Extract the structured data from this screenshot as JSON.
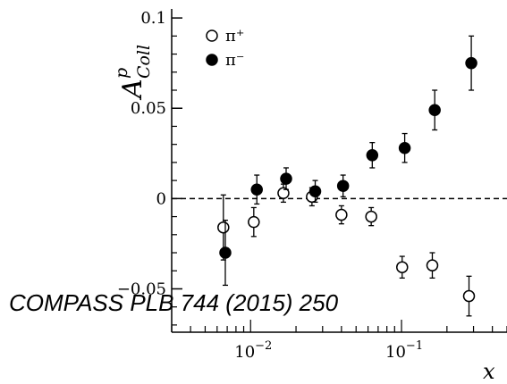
{
  "chart_data": {
    "type": "scatter",
    "x_scale": "log",
    "xlim": [
      0.003,
      0.5
    ],
    "ylim": [
      -0.074,
      0.105
    ],
    "xlabel": "x",
    "ylabel": {
      "base": "A",
      "superscript": "p",
      "subscript": "Coll"
    },
    "x_ticks": [
      {
        "value": 0.01,
        "mantissa": "10",
        "exponent": "−2"
      },
      {
        "value": 0.1,
        "mantissa": "10",
        "exponent": "−1"
      }
    ],
    "y_ticks": [
      {
        "value": 0.1,
        "label": "0.1"
      },
      {
        "value": 0.05,
        "label": "0.05"
      },
      {
        "value": 0,
        "label": "0"
      },
      {
        "value": -0.05,
        "label": "−0.05"
      }
    ],
    "zero_line": "dashed",
    "legend_placement": "top-left",
    "series": [
      {
        "name": "π⁺",
        "marker": "open-circle",
        "x": [
          0.0066,
          0.0105,
          0.0165,
          0.0255,
          0.04,
          0.063,
          0.101,
          0.16,
          0.28
        ],
        "y": [
          -0.016,
          -0.013,
          0.003,
          0.001,
          -0.009,
          -0.01,
          -0.038,
          -0.037,
          -0.054
        ],
        "err": [
          0.018,
          0.008,
          0.005,
          0.005,
          0.005,
          0.005,
          0.006,
          0.007,
          0.011
        ]
      },
      {
        "name": "π⁻",
        "marker": "filled-circle",
        "x": [
          0.0068,
          0.011,
          0.0172,
          0.0268,
          0.041,
          0.064,
          0.105,
          0.166,
          0.29
        ],
        "y": [
          -0.03,
          0.005,
          0.011,
          0.004,
          0.007,
          0.024,
          0.028,
          0.049,
          0.075
        ],
        "err": [
          0.018,
          0.008,
          0.006,
          0.006,
          0.006,
          0.007,
          0.008,
          0.011,
          0.015
        ]
      }
    ]
  },
  "annotation": "COMPASS PLB 744 (2015) 250",
  "colors": {
    "axis": "#000000",
    "open_marker_fill": "#ffffff",
    "filled_marker_fill": "#000000"
  }
}
